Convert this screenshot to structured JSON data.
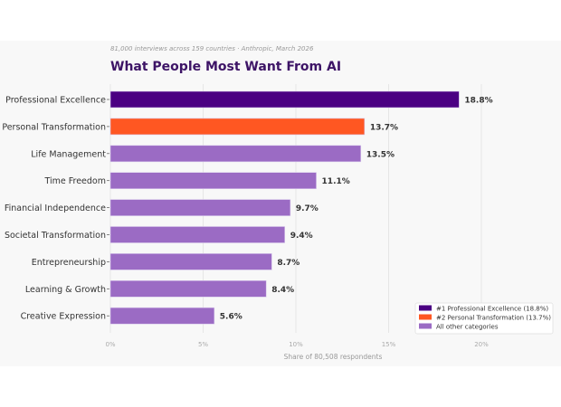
{
  "chart_data": {
    "type": "bar",
    "orientation": "horizontal",
    "subtitle": "81,000 interviews across 159 countries · Anthropic, March 2026",
    "title": "What People Most Want From AI",
    "xlabel": "Share of 80,508 respondents",
    "ylabel": "",
    "xlim": [
      0,
      24
    ],
    "xticks": [
      "0%",
      "5%",
      "10%",
      "15%",
      "20%"
    ],
    "xtick_values": [
      0,
      5,
      10,
      15,
      20
    ],
    "grid": true,
    "categories": [
      "Professional Excellence",
      "Personal Transformation",
      "Life Management",
      "Time Freedom",
      "Financial Independence",
      "Societal Transformation",
      "Entrepreneurship",
      "Learning & Growth",
      "Creative Expression"
    ],
    "values": [
      18.8,
      13.7,
      13.5,
      11.1,
      9.7,
      9.4,
      8.7,
      8.4,
      5.6
    ],
    "value_labels": [
      "18.8%",
      "13.7%",
      "13.5%",
      "11.1%",
      "9.7%",
      "9.4%",
      "8.7%",
      "8.4%",
      "5.6%"
    ],
    "bar_colors": [
      "#4b0082",
      "#ff5722",
      "#9b6bc4",
      "#9b6bc4",
      "#9b6bc4",
      "#9b6bc4",
      "#9b6bc4",
      "#9b6bc4",
      "#9b6bc4"
    ],
    "legend": {
      "placement": "bottom-right",
      "entries": [
        {
          "label": "#1  Professional Excellence (18.8%)",
          "color": "#4b0082"
        },
        {
          "label": "#2  Personal Transformation (13.7%)",
          "color": "#ff5722"
        },
        {
          "label": "All other categories",
          "color": "#9b6bc4"
        }
      ]
    }
  }
}
